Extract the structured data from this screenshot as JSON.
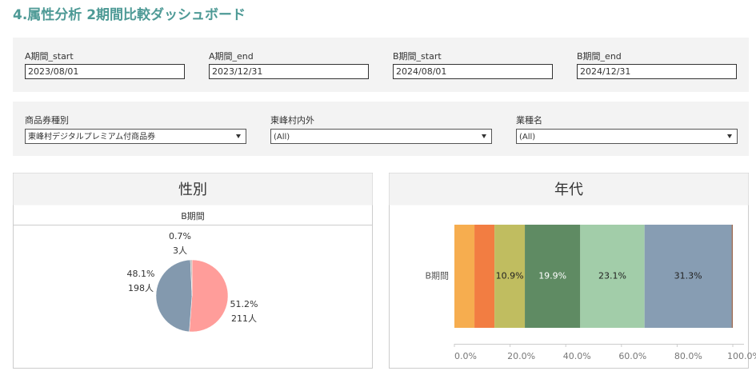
{
  "header": {
    "title": "4.属性分析 2期間比較ダッシュボード"
  },
  "date_filters": [
    {
      "label": "A期間_start",
      "value": "2023/08/01"
    },
    {
      "label": "A期間_end",
      "value": "2023/12/31"
    },
    {
      "label": "B期間_start",
      "value": "2024/08/01"
    },
    {
      "label": "B期間_end",
      "value": "2024/12/31"
    }
  ],
  "dropdown_filters": [
    {
      "label": "商品券種別",
      "value": "東峰村デジタルプレミアム付商品券"
    },
    {
      "label": "東峰村内外",
      "value": "(All)"
    },
    {
      "label": "業種名",
      "value": "(All)"
    }
  ],
  "chart_data": [
    {
      "type": "pie",
      "title": "性別",
      "subtitle": "B期間",
      "values": [
        51.2,
        48.1,
        0.7
      ],
      "value_labels": [
        "51.2%",
        "48.1%",
        "0.7%"
      ],
      "counts": [
        211,
        198,
        3
      ],
      "count_labels": [
        "211人",
        "198人",
        "3人"
      ],
      "colors": [
        "#ff9d9a",
        "#8399ae",
        "#b9b0ab"
      ]
    },
    {
      "type": "stacked_hbar",
      "title": "年代",
      "categories": [
        "B期間"
      ],
      "series": [
        {
          "color": "#f6ad4f",
          "values": [
            7.2
          ]
        },
        {
          "color": "#f27d42",
          "values": [
            7.2
          ]
        },
        {
          "color": "#c0bd60",
          "values": [
            10.9
          ],
          "value_labels": [
            "10.9%"
          ]
        },
        {
          "color": "#5f8b63",
          "values": [
            19.9
          ],
          "value_labels": [
            "19.9%"
          ]
        },
        {
          "color": "#a2cda9",
          "values": [
            23.1
          ],
          "value_labels": [
            "23.1%"
          ]
        },
        {
          "color": "#879db3",
          "values": [
            31.3
          ],
          "value_labels": [
            "31.3%"
          ]
        },
        {
          "color": "#9b6a52",
          "values": [
            0.4
          ]
        }
      ],
      "xlim": [
        0,
        100
      ],
      "xticks": [
        {
          "value": 0,
          "label": "0.0%"
        },
        {
          "value": 20,
          "label": "20.0%"
        },
        {
          "value": 40,
          "label": "40.0%"
        },
        {
          "value": 60,
          "label": "60.0%"
        },
        {
          "value": 80,
          "label": "80.0%"
        },
        {
          "value": 100,
          "label": "100.0%"
        }
      ]
    }
  ]
}
